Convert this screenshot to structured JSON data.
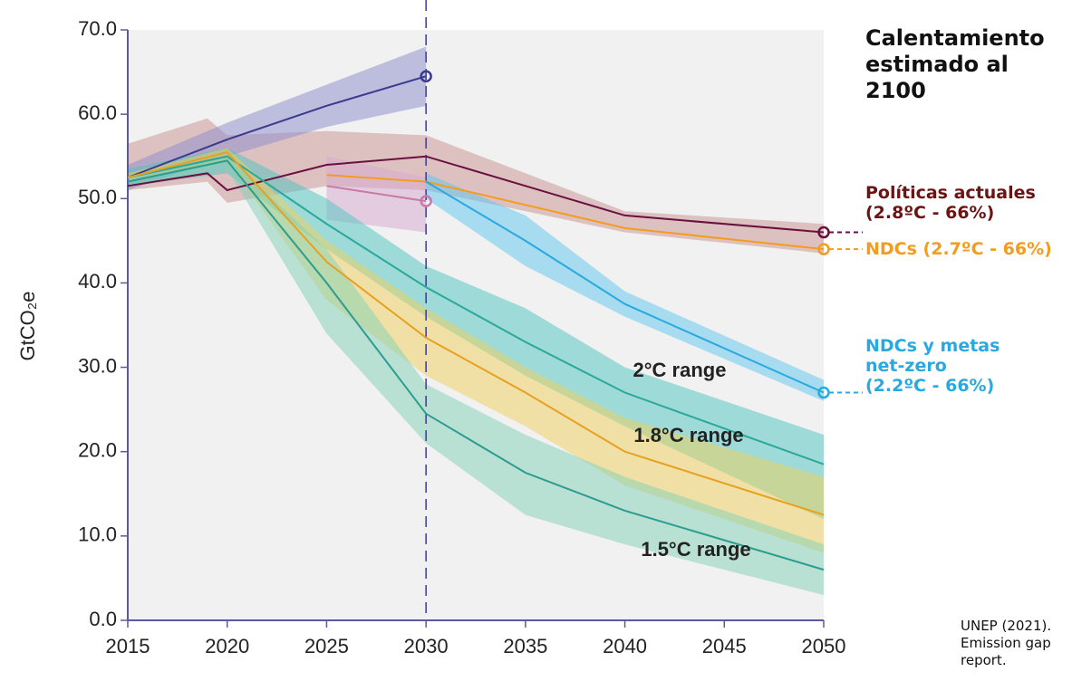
{
  "heading": "Calentamiento estimado al 2100",
  "source": "UNEP (2021). Emission gap report.",
  "chart_data": {
    "type": "line",
    "y_label": "GtCO₂e",
    "xlim": [
      2015,
      2050
    ],
    "xticks": [
      2015,
      2020,
      2025,
      2030,
      2035,
      2040,
      2045,
      2050
    ],
    "ylim": [
      0,
      70
    ],
    "yticks": [
      {
        "value": 0,
        "label": "0.0"
      },
      {
        "value": 10,
        "label": "10.0"
      },
      {
        "value": 20,
        "label": "20.0"
      },
      {
        "value": 30,
        "label": "30.0"
      },
      {
        "value": 40,
        "label": "40.0"
      },
      {
        "value": 50,
        "label": "50.0"
      },
      {
        "value": 60,
        "label": "60.0"
      },
      {
        "value": 70,
        "label": "70.0"
      }
    ],
    "reference_x": 2030,
    "series": [
      {
        "name": "Políticas actuales (2.8ºC - 66%)",
        "color": "#6a1040",
        "band_color": "#c99090",
        "marker": "end",
        "x": [
          2015,
          2019,
          2020,
          2025,
          2030,
          2040,
          2050
        ],
        "values": [
          51.5,
          53,
          51,
          54,
          55,
          48,
          46
        ],
        "low": [
          51,
          52,
          49.5,
          51.5,
          51,
          46,
          43.5
        ],
        "high": [
          56.5,
          59.5,
          57.5,
          58,
          57.5,
          48.5,
          47
        ]
      },
      {
        "name": "NDCs (2.7ºC - 66%)",
        "color": "#f39c1e",
        "marker": "end",
        "x": [
          2025,
          2030,
          2040,
          2050
        ],
        "values": [
          52.8,
          52,
          46.5,
          44
        ]
      },
      {
        "name": "NDCs y metas net-zero (2.2ºC - 66%)",
        "color": "#2aa9e0",
        "band_color": "#5cc5ef",
        "marker": "end",
        "x": [
          2030,
          2035,
          2040,
          2050
        ],
        "values": [
          52,
          45,
          37.5,
          27
        ],
        "low": [
          50,
          42,
          36,
          26
        ],
        "high": [
          53,
          48,
          39,
          28.5
        ]
      },
      {
        "color": "#3b3a8e",
        "band_color": "#8a8ccc",
        "marker": "end",
        "x": [
          2015,
          2020,
          2025,
          2030
        ],
        "values": [
          52.5,
          57,
          61,
          64.5
        ],
        "low": [
          51,
          55,
          58.5,
          61
        ],
        "high": [
          54,
          59,
          63.5,
          68
        ]
      },
      {
        "color": "#c77aa6",
        "band_color": "#d8a8d0",
        "marker": "end",
        "x": [
          2025,
          2030
        ],
        "values": [
          51.5,
          49.7
        ],
        "low": [
          47.5,
          46
        ],
        "high": [
          55,
          52.5
        ]
      },
      {
        "name": "2°C range",
        "color": "#2aa89a",
        "band_color": "#4cc3c0",
        "x": [
          2015,
          2020,
          2025,
          2030,
          2035,
          2040,
          2050
        ],
        "values": [
          52.5,
          55,
          47,
          39.5,
          33,
          27,
          18.5
        ],
        "low": [
          51.5,
          53,
          44,
          36,
          29,
          23,
          12
        ],
        "high": [
          53.5,
          56,
          50,
          42,
          37,
          30,
          22
        ]
      },
      {
        "name": "1.8°C range",
        "color": "#e8a020",
        "band_color": "#f2cf5a",
        "x": [
          2015,
          2020,
          2025,
          2030,
          2035,
          2040,
          2050
        ],
        "values": [
          52.5,
          55.5,
          42.5,
          33.5,
          27,
          20,
          12.5
        ],
        "low": [
          52,
          54.5,
          38,
          29,
          23,
          16,
          8
        ],
        "high": [
          53,
          56,
          45,
          37,
          30,
          24,
          17
        ]
      },
      {
        "name": "1.5°C range",
        "color": "#2a9d8f",
        "band_color": "#7fd0b5",
        "x": [
          2015,
          2020,
          2025,
          2030,
          2035,
          2040,
          2050
        ],
        "values": [
          52,
          54.5,
          40,
          24.5,
          17.5,
          13,
          6
        ],
        "low": [
          51.5,
          53.5,
          34,
          21,
          12.5,
          9,
          3
        ],
        "high": [
          52.5,
          55,
          44,
          28,
          22,
          17,
          9
        ]
      }
    ]
  }
}
